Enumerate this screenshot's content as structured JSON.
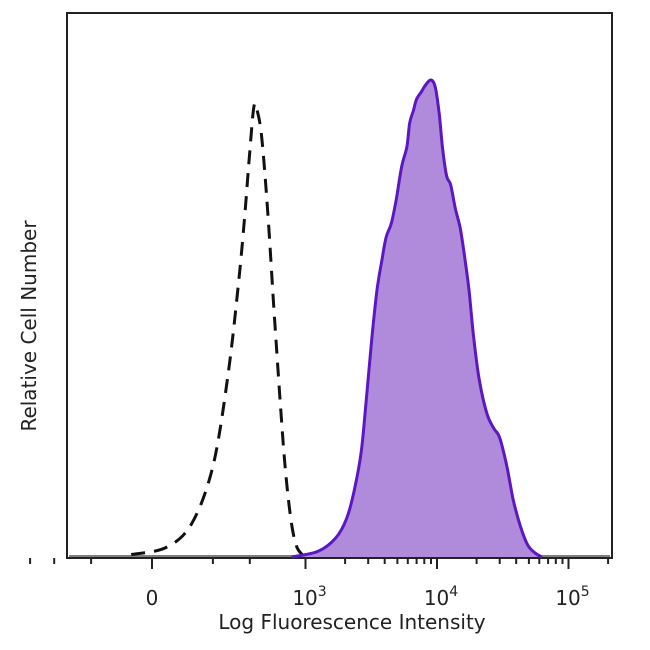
{
  "chart_data": {
    "type": "area",
    "xlabel": "Log Fluorescence Intensity",
    "ylabel": "Relative Cell Number",
    "x_scale": "biexponential",
    "x_ticks": [
      {
        "value": 0,
        "base": "0",
        "exp": ""
      },
      {
        "value": 1000,
        "base": "10",
        "exp": "3"
      },
      {
        "value": 10000,
        "base": "10",
        "exp": "4"
      },
      {
        "value": 100000,
        "base": "10",
        "exp": "5"
      }
    ],
    "grid": false,
    "legend": "none",
    "series": [
      {
        "style": "dashed-outline",
        "color": "#111111",
        "points": [
          [
            -60,
            0.005
          ],
          [
            40,
            0.02
          ],
          [
            120,
            0.07
          ],
          [
            200,
            0.19
          ],
          [
            270,
            0.38
          ],
          [
            330,
            0.58
          ],
          [
            370,
            0.73
          ],
          [
            400,
            0.85
          ],
          [
            430,
            0.945
          ],
          [
            455,
            0.935
          ],
          [
            490,
            0.88
          ],
          [
            540,
            0.73
          ],
          [
            600,
            0.52
          ],
          [
            660,
            0.34
          ],
          [
            720,
            0.19
          ],
          [
            790,
            0.08
          ],
          [
            860,
            0.025
          ],
          [
            950,
            0.005
          ],
          [
            1050,
            0.0
          ]
        ]
      },
      {
        "style": "filled",
        "color": "#5b17c2",
        "fill": "#b08bdb",
        "points": [
          [
            800,
            0.0
          ],
          [
            1250,
            0.012
          ],
          [
            1700,
            0.04
          ],
          [
            2050,
            0.08
          ],
          [
            2350,
            0.14
          ],
          [
            2650,
            0.22
          ],
          [
            2900,
            0.33
          ],
          [
            3200,
            0.46
          ],
          [
            3500,
            0.56
          ],
          [
            3800,
            0.62
          ],
          [
            4100,
            0.67
          ],
          [
            4500,
            0.7
          ],
          [
            4900,
            0.75
          ],
          [
            5400,
            0.82
          ],
          [
            5900,
            0.86
          ],
          [
            6200,
            0.91
          ],
          [
            6600,
            0.935
          ],
          [
            7000,
            0.96
          ],
          [
            7600,
            0.975
          ],
          [
            8200,
            0.99
          ],
          [
            9000,
            1.0
          ],
          [
            9700,
            0.985
          ],
          [
            10400,
            0.93
          ],
          [
            11000,
            0.86
          ],
          [
            11800,
            0.8
          ],
          [
            12700,
            0.78
          ],
          [
            13800,
            0.73
          ],
          [
            15000,
            0.69
          ],
          [
            16200,
            0.63
          ],
          [
            17500,
            0.56
          ],
          [
            19000,
            0.46
          ],
          [
            21000,
            0.37
          ],
          [
            24000,
            0.3
          ],
          [
            27000,
            0.27
          ],
          [
            30000,
            0.25
          ],
          [
            34000,
            0.19
          ],
          [
            38000,
            0.12
          ],
          [
            43000,
            0.065
          ],
          [
            49000,
            0.025
          ],
          [
            56000,
            0.008
          ],
          [
            63000,
            0.0
          ]
        ]
      }
    ]
  }
}
